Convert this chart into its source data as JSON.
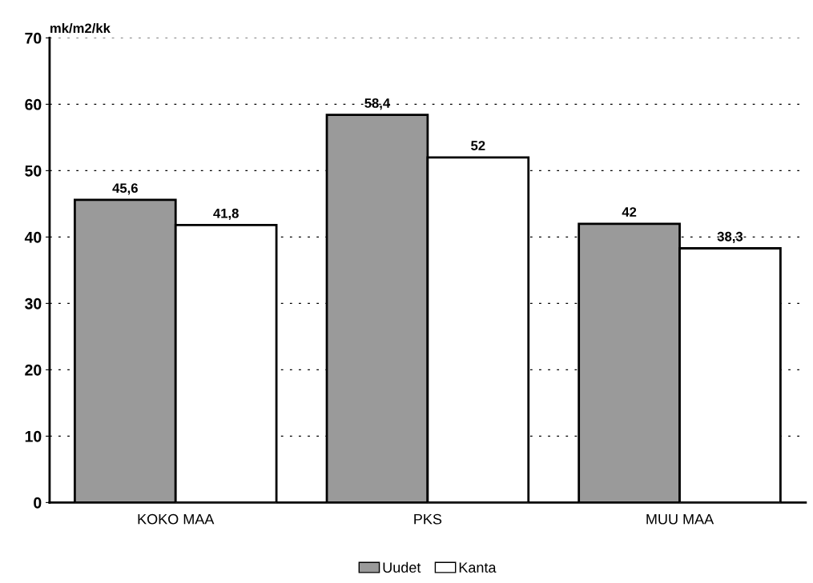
{
  "chart_data": {
    "type": "bar",
    "ylabel": "mk/m2/kk",
    "categories": [
      "KOKO MAA",
      "PKS",
      "MUU MAA"
    ],
    "series": [
      {
        "name": "Uudet",
        "color": "#9a9a9a",
        "values": [
          45.6,
          58.4,
          42
        ],
        "value_labels": [
          "45,6",
          "58,4",
          "42"
        ]
      },
      {
        "name": "Kanta",
        "color": "#ffffff",
        "values": [
          41.8,
          52,
          38.3
        ],
        "value_labels": [
          "41,8",
          "52",
          "38,3"
        ]
      }
    ],
    "ylim": [
      0,
      70
    ],
    "yticks": [
      0,
      10,
      20,
      30,
      40,
      50,
      60,
      70
    ],
    "grid": "y",
    "legend": "bottom"
  }
}
